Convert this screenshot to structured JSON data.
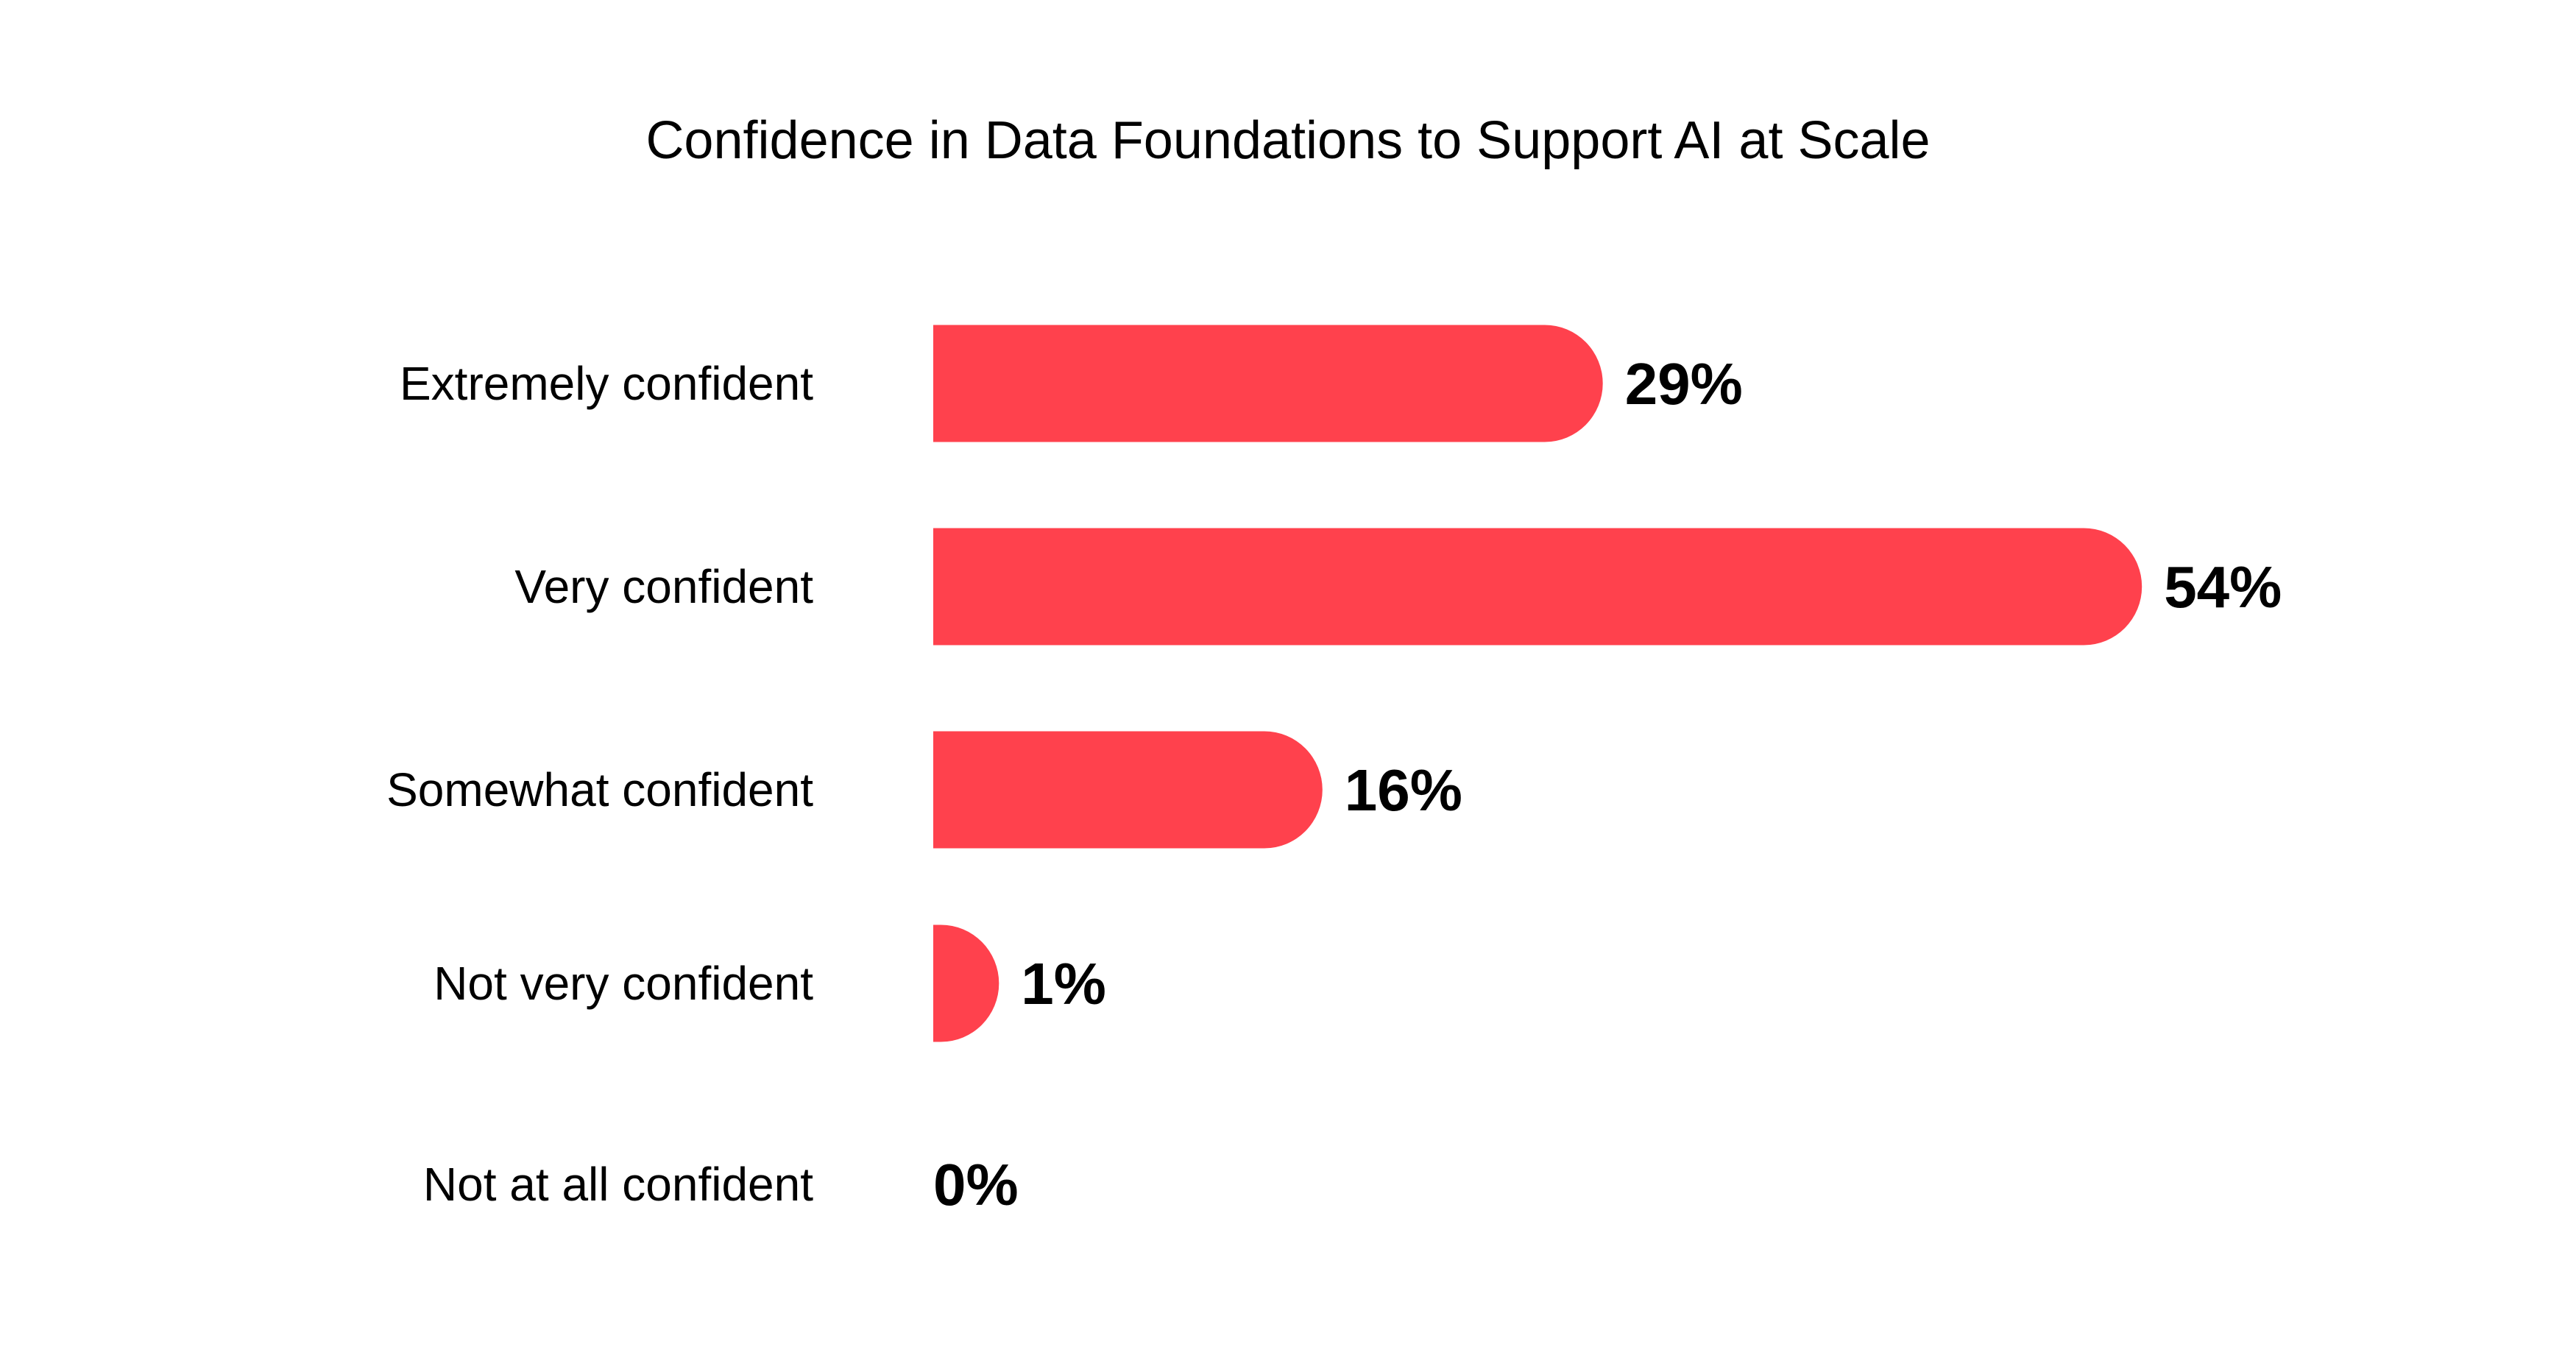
{
  "chart_data": {
    "type": "bar",
    "orientation": "horizontal",
    "title": "Confidence in Data Foundations to Support AI at Scale",
    "categories": [
      "Extremely confident",
      "Very confident",
      "Somewhat confident",
      "Not very confident",
      "Not at all confident"
    ],
    "values": [
      29,
      54,
      16,
      1,
      0
    ],
    "value_labels": [
      "29%",
      "54%",
      "16%",
      "1%",
      "0%"
    ],
    "xlabel": "",
    "ylabel": "",
    "unit": "%",
    "grid": false,
    "bar_color": "#FF414D"
  }
}
